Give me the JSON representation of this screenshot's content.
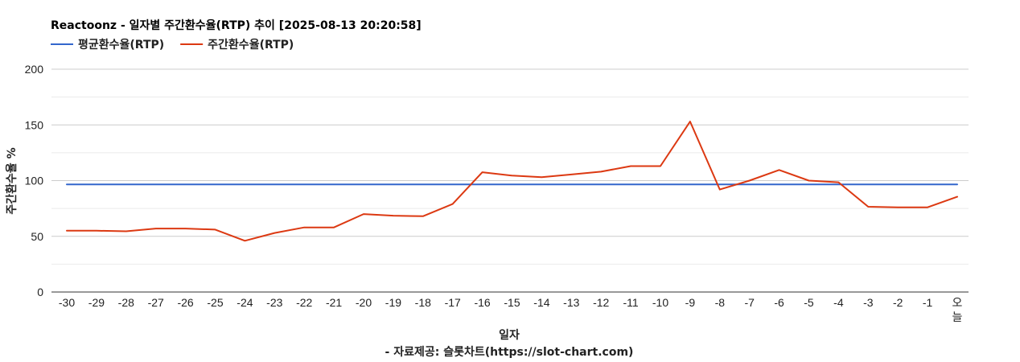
{
  "chart_data": {
    "type": "line",
    "title": "Reactoonz - 일자별 주간환수율(RTP) 추이 [2025-08-13 20:20:58]",
    "xlabel": "일자",
    "ylabel": "주간환수율 %",
    "source_note": "- 자료제공: 슬롯차트(https://slot-chart.com)",
    "ylim": [
      0,
      200
    ],
    "yticks": [
      "0",
      "50",
      "100",
      "150",
      "200"
    ],
    "legend_position": "top-left",
    "grid": true,
    "categories": [
      "-30",
      "-29",
      "-28",
      "-27",
      "-26",
      "-25",
      "-24",
      "-23",
      "-22",
      "-21",
      "-20",
      "-19",
      "-18",
      "-17",
      "-16",
      "-15",
      "-14",
      "-13",
      "-12",
      "-11",
      "-10",
      "-9",
      "-8",
      "-7",
      "-6",
      "-5",
      "-4",
      "-3",
      "-2",
      "-1",
      "오늘"
    ],
    "series": [
      {
        "name": "평균환수율(RTP)",
        "color": "#3366cc",
        "values": [
          96.5,
          96.5,
          96.5,
          96.5,
          96.5,
          96.5,
          96.5,
          96.5,
          96.5,
          96.5,
          96.5,
          96.5,
          96.5,
          96.5,
          96.5,
          96.5,
          96.5,
          96.5,
          96.5,
          96.5,
          96.5,
          96.5,
          96.5,
          96.5,
          96.5,
          96.5,
          96.5,
          96.5,
          96.5,
          96.5,
          96.5
        ]
      },
      {
        "name": "주간환수율(RTP)",
        "color": "#dc3912",
        "values": [
          55,
          55,
          54.5,
          57,
          57,
          56,
          46,
          53,
          58,
          58,
          70,
          68.5,
          68,
          79,
          107.5,
          104.5,
          103,
          105.5,
          108,
          113,
          113,
          153,
          92,
          100,
          109.5,
          100,
          98.5,
          76.5,
          76,
          76,
          85.5
        ]
      }
    ]
  }
}
